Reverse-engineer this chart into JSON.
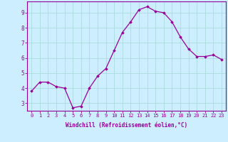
{
  "x": [
    0,
    1,
    2,
    3,
    4,
    5,
    6,
    7,
    8,
    9,
    10,
    11,
    12,
    13,
    14,
    15,
    16,
    17,
    18,
    19,
    20,
    21,
    22,
    23
  ],
  "y": [
    3.8,
    4.4,
    4.4,
    4.1,
    4.0,
    2.7,
    2.8,
    4.0,
    4.8,
    5.3,
    6.5,
    7.7,
    8.4,
    9.2,
    9.4,
    9.1,
    9.0,
    8.4,
    7.4,
    6.6,
    6.1,
    6.1,
    6.2,
    5.9
  ],
  "line_color": "#990099",
  "marker": "D",
  "marker_size": 1.8,
  "linewidth": 0.9,
  "bg_color": "#cceeff",
  "grid_color": "#aadddd",
  "xlabel": "Windchill (Refroidissement éolien,°C)",
  "xlabel_color": "#990099",
  "tick_color": "#990099",
  "xlim": [
    -0.5,
    23.5
  ],
  "ylim": [
    2.5,
    9.75
  ],
  "yticks": [
    3,
    4,
    5,
    6,
    7,
    8,
    9
  ],
  "xticks": [
    0,
    1,
    2,
    3,
    4,
    5,
    6,
    7,
    8,
    9,
    10,
    11,
    12,
    13,
    14,
    15,
    16,
    17,
    18,
    19,
    20,
    21,
    22,
    23
  ],
  "xtick_labels": [
    "0",
    "1",
    "2",
    "3",
    "4",
    "5",
    "6",
    "7",
    "8",
    "9",
    "10",
    "11",
    "12",
    "13",
    "14",
    "15",
    "16",
    "17",
    "18",
    "19",
    "20",
    "21",
    "22",
    "23"
  ],
  "spine_color": "#990099",
  "tick_fontsize": 5.0,
  "xlabel_fontsize": 5.5,
  "ytick_fontsize": 5.5
}
